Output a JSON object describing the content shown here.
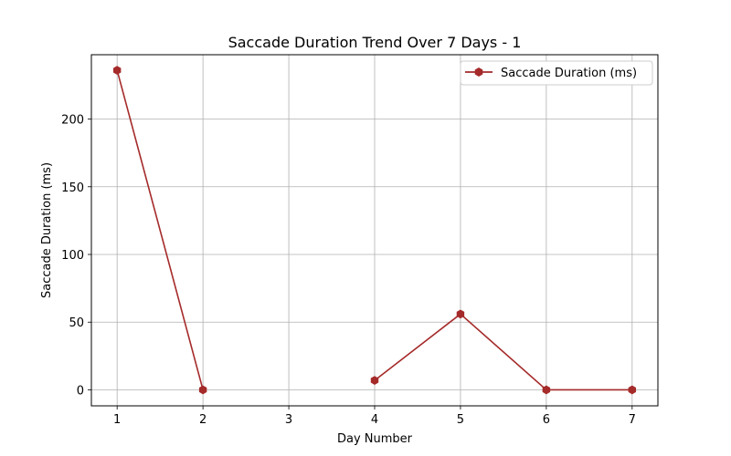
{
  "chart_data": {
    "type": "line",
    "title": "Saccade Duration Trend Over 7 Days - 1",
    "xlabel": "Day Number",
    "ylabel": "Saccade Duration (ms)",
    "x": [
      1,
      2,
      3,
      4,
      5,
      6,
      7
    ],
    "x_ticks": [
      "1",
      "2",
      "3",
      "4",
      "5",
      "6",
      "7"
    ],
    "y_ticks": [
      "0",
      "50",
      "100",
      "150",
      "200"
    ],
    "xlim": [
      0.7,
      7.3
    ],
    "ylim": [
      -11.8,
      247.5
    ],
    "grid": true,
    "legend_position": "top-right",
    "series": [
      {
        "name": "Saccade Duration (ms)",
        "color": "#a52a2a",
        "marker": "hexagon",
        "values": [
          236,
          0,
          null,
          7,
          56,
          0,
          0
        ]
      }
    ]
  }
}
